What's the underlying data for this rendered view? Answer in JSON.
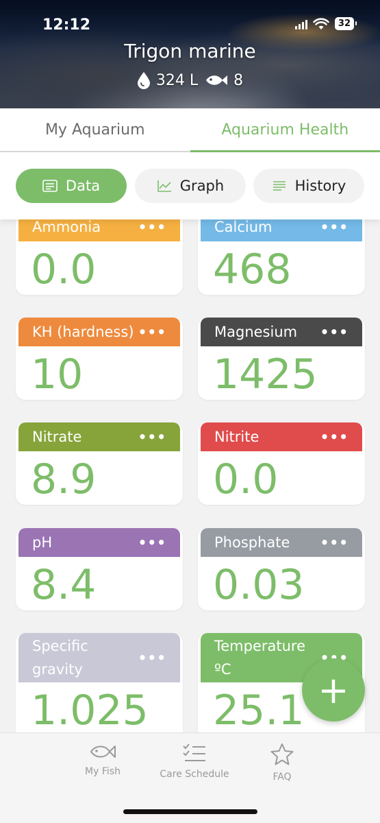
{
  "status_bar": {
    "time": "12:12",
    "battery": "32"
  },
  "tank": {
    "name": "Trigon marine",
    "volume": "324 L",
    "fish_count": "8"
  },
  "tabs": [
    {
      "label": "My Aquarium",
      "active": false
    },
    {
      "label": "Aquarium Health",
      "active": true
    }
  ],
  "segments": [
    {
      "label": "Data",
      "icon": "list-card-icon",
      "active": true
    },
    {
      "label": "Graph",
      "icon": "line-chart-icon",
      "active": false
    },
    {
      "label": "History",
      "icon": "lines-icon",
      "active": false
    }
  ],
  "cards": [
    {
      "label": "Ammonia",
      "value": "0.0",
      "color": "#f5b041"
    },
    {
      "label": "Calcium",
      "value": "468",
      "color": "#74b9e7"
    },
    {
      "label": "KH (hardness)",
      "value": "10",
      "color": "#ee8a3d"
    },
    {
      "label": "Magnesium",
      "value": "1425",
      "color": "#4a4a4a"
    },
    {
      "label": "Nitrate",
      "value": "8.9",
      "color": "#86a43a"
    },
    {
      "label": "Nitrite",
      "value": "0.0",
      "color": "#e04b4b"
    },
    {
      "label": "pH",
      "value": "8.4",
      "color": "#9a74b3"
    },
    {
      "label": "Phosphate",
      "value": "0.03",
      "color": "#979ca3"
    },
    {
      "label": "Specific gravity",
      "value": "1.025",
      "color": "#c9c8d6"
    },
    {
      "label": "Temperature ºC",
      "value": "25.1",
      "color": "#7dbd69"
    }
  ],
  "card_menu": "•••",
  "fab": {
    "label": "+"
  },
  "bottom_nav": [
    {
      "label": "My Fish",
      "icon": "fish-icon"
    },
    {
      "label": "Care Schedule",
      "icon": "checklist-icon"
    },
    {
      "label": "FAQ",
      "icon": "star-icon"
    }
  ],
  "accent_color": "#7dbd69"
}
